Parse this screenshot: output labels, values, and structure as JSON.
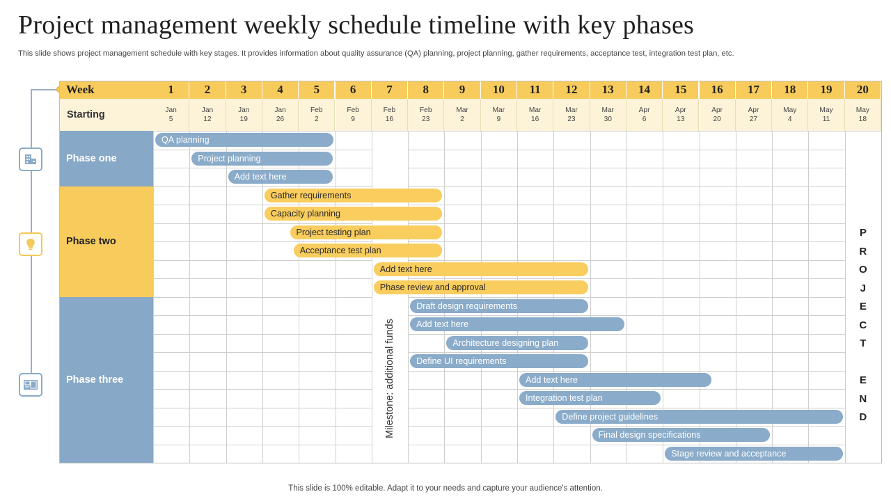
{
  "title": "Project management weekly schedule timeline with key phases",
  "subtitle": "This slide shows project management schedule with key stages. It provides information about quality assurance (QA) planning, project planning, gather requirements, acceptance test, integration test plan, etc.",
  "footer": "This slide is 100% editable. Adapt it to your needs and capture your audience's attention.",
  "header": {
    "week_label": "Week",
    "starting_label": "Starting",
    "weeks": [
      "1",
      "2",
      "3",
      "4",
      "5",
      "6",
      "7",
      "8",
      "9",
      "10",
      "11",
      "12",
      "13",
      "14",
      "15",
      "16",
      "17",
      "18",
      "19",
      "20"
    ],
    "dates": [
      "Jan\n5",
      "Jan\n12",
      "Jan\n19",
      "Jan\n26",
      "Feb\n2",
      "Feb\n9",
      "Feb\n16",
      "Feb\n23",
      "Mar\n2",
      "Mar\n9",
      "Mar\n16",
      "Mar\n23",
      "Mar\n30",
      "Apr\n6",
      "Apr\n13",
      "Apr\n20",
      "Apr\n27",
      "May\n4",
      "May\n11",
      "May\n18"
    ]
  },
  "phases": [
    {
      "label": "Phase one",
      "color": "blue",
      "icon": "building-icon"
    },
    {
      "label": "Phase two",
      "color": "yellow",
      "icon": "lightbulb-icon"
    },
    {
      "label": "Phase three",
      "color": "blue",
      "icon": "blueprint-icon"
    }
  ],
  "tasks": [
    {
      "label": "QA planning",
      "phase": 1,
      "start_week": 1,
      "end_week": 5
    },
    {
      "label": "Project planning",
      "phase": 1,
      "start_week": 2,
      "end_week": 5
    },
    {
      "label": "Add text here",
      "phase": 1,
      "start_week": 3,
      "end_week": 5
    },
    {
      "label": "Gather requirements",
      "phase": 2,
      "start_week": 4,
      "end_week": 8
    },
    {
      "label": "Capacity planning",
      "phase": 2,
      "start_week": 4,
      "end_week": 8
    },
    {
      "label": "Project testing plan",
      "phase": 2,
      "start_week": 4.7,
      "end_week": 8
    },
    {
      "label": "Acceptance test plan",
      "phase": 2,
      "start_week": 4.8,
      "end_week": 8
    },
    {
      "label": "Add text here",
      "phase": 2,
      "start_week": 7,
      "end_week": 12
    },
    {
      "label": "Phase review  and approval",
      "phase": 2,
      "start_week": 7,
      "end_week": 12
    },
    {
      "label": "Draft design requirements",
      "phase": 3,
      "start_week": 8,
      "end_week": 12
    },
    {
      "label": "Add text here",
      "phase": 3,
      "start_week": 8,
      "end_week": 13
    },
    {
      "label": "Architecture designing plan",
      "phase": 3,
      "start_week": 9,
      "end_week": 12
    },
    {
      "label": "Define  UI requirements",
      "phase": 3,
      "start_week": 8,
      "end_week": 12
    },
    {
      "label": "Add text here",
      "phase": 3,
      "start_week": 11,
      "end_week": 15.4
    },
    {
      "label": "Integration  test plan",
      "phase": 3,
      "start_week": 11,
      "end_week": 14
    },
    {
      "label": "Define  project guidelines",
      "phase": 3,
      "start_week": 12,
      "end_week": 19
    },
    {
      "label": "Final design specifications",
      "phase": 3,
      "start_week": 13,
      "end_week": 17
    },
    {
      "label": "Stage review  and acceptance",
      "phase": 3,
      "start_week": 15,
      "end_week": 19
    }
  ],
  "milestone": {
    "label": "Milestone: additional funds",
    "week": 7
  },
  "project_end": {
    "label": "PROJECT END",
    "week": 20
  }
}
